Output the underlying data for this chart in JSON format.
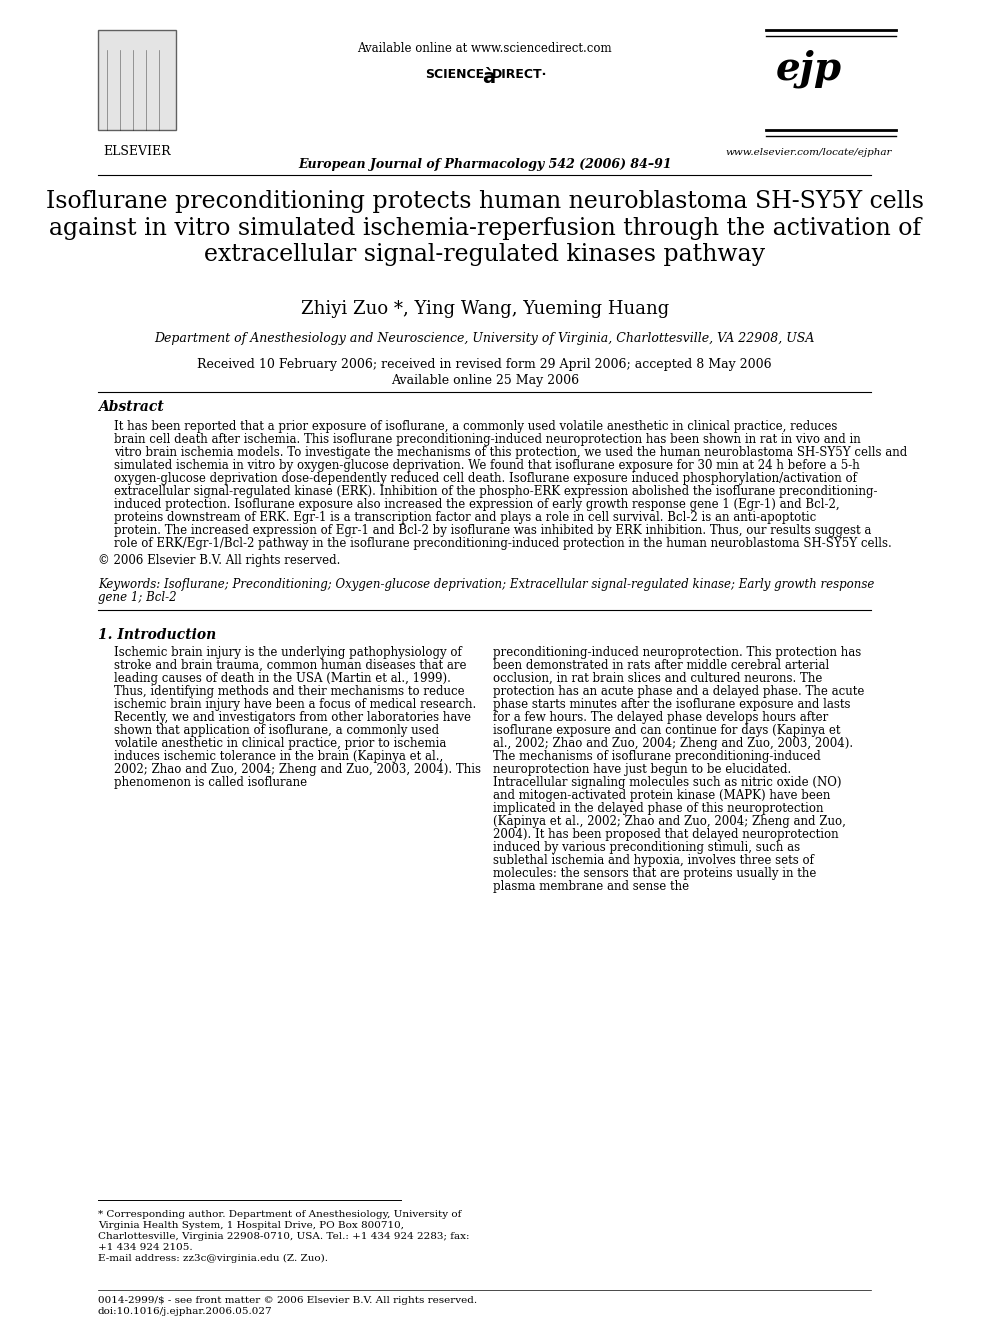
{
  "page_bg": "#ffffff",
  "header": {
    "available_online": "Available online at www.sciencedirect.com",
    "journal_line": "European Journal of Pharmacology 542 (2006) 84–91",
    "elsevier_text": "ELSEVIER",
    "sciencedirect_text": "SCIENCE à DIRECT·",
    "ejp_text": "ejp",
    "website": "www.elsevier.com/locate/ejphar"
  },
  "title": "Isoflurane preconditioning protects human neuroblastoma SH-SY5Y cells\nagainst in vitro simulated ischemia-reperfusion through the activation of\nextracellular signal-regulated kinases pathway",
  "authors": "Zhiyi Zuo *, Ying Wang, Yueming Huang",
  "affiliation": "Department of Anesthesiology and Neuroscience, University of Virginia, Charlottesville, VA 22908, USA",
  "dates": "Received 10 February 2006; received in revised form 29 April 2006; accepted 8 May 2006",
  "available_online_date": "Available online 25 May 2006",
  "abstract_heading": "Abstract",
  "abstract_text": "It has been reported that a prior exposure of isoflurane, a commonly used volatile anesthetic in clinical practice, reduces brain cell death after ischemia. This isoflurane preconditioning-induced neuroprotection has been shown in rat in vivo and in vitro brain ischemia models. To investigate the mechanisms of this protection, we used the human neuroblastoma SH-SY5Y cells and simulated ischemia in vitro by oxygen-glucose deprivation. We found that isoflurane exposure for 30 min at 24 h before a 5-h oxygen-glucose deprivation dose-dependently reduced cell death. Isoflurane exposure induced phosphorylation/activation of extracellular signal-regulated kinase (ERK). Inhibition of the phospho-ERK expression abolished the isoflurane preconditioning-induced protection. Isoflurane exposure also increased the expression of early growth response gene 1 (Egr-1) and Bcl-2, proteins downstream of ERK. Egr-1 is a transcription factor and plays a role in cell survival. Bcl-2 is an anti-apoptotic protein. The increased expression of Egr-1 and Bcl-2 by isoflurane was inhibited by ERK inhibition. Thus, our results suggest a role of ERK/Egr-1/Bcl-2 pathway in the isoflurane preconditioning-induced protection in the human neuroblastoma SH-SY5Y cells.",
  "copyright": "© 2006 Elsevier B.V. All rights reserved.",
  "keywords_label": "Keywords:",
  "keywords": "Isoflurane; Preconditioning; Oxygen-glucose deprivation; Extracellular signal-regulated kinase; Early growth response gene 1; Bcl-2",
  "section1_heading": "1. Introduction",
  "intro_col1": "Ischemic brain injury is the underlying pathophysiology of stroke and brain trauma, common human diseases that are leading causes of death in the USA (Martin et al., 1999). Thus, identifying methods and their mechanisms to reduce ischemic brain injury have been a focus of medical research. Recently, we and investigators from other laboratories have shown that application of isoflurane, a commonly used volatile anesthetic in clinical practice, prior to ischemia induces ischemic tolerance in the brain (Kapinya et al., 2002; Zhao and Zuo, 2004; Zheng and Zuo, 2003, 2004). This phenomenon is called isoflurane",
  "intro_col2": "preconditioning-induced neuroprotection. This protection has been demonstrated in rats after middle cerebral arterial occlusion, in rat brain slices and cultured neurons. The protection has an acute phase and a delayed phase. The acute phase starts minutes after the isoflurane exposure and lasts for a few hours. The delayed phase develops hours after isoflurane exposure and can continue for days (Kapinya et al., 2002; Zhao and Zuo, 2004; Zheng and Zuo, 2003, 2004).\n\nThe mechanisms of isoflurane preconditioning-induced neuroprotection have just begun to be elucidated. Intracellular signaling molecules such as nitric oxide (NO) and mitogen-activated protein kinase (MAPK) have been implicated in the delayed phase of this neuroprotection (Kapinya et al., 2002; Zhao and Zuo, 2004; Zheng and Zuo, 2004). It has been proposed that delayed neuroprotection induced by various preconditioning stimuli, such as sublethal ischemia and hypoxia, involves three sets of molecules: the sensors that are proteins usually in the plasma membrane and sense the",
  "footnote_star": "* Corresponding author. Department of Anesthesiology, University of Virginia Health System, 1 Hospital Drive, PO Box 800710, Charlottesville, Virginia 22908-0710, USA. Tel.: +1 434 924 2283; fax: +1 434 924 2105.\nE-mail address: zz3c@virginia.edu (Z. Zuo).",
  "bottom_left": "0014-2999/$ - see front matter © 2006 Elsevier B.V. All rights reserved.\ndoi:10.1016/j.ejphar.2006.05.027"
}
